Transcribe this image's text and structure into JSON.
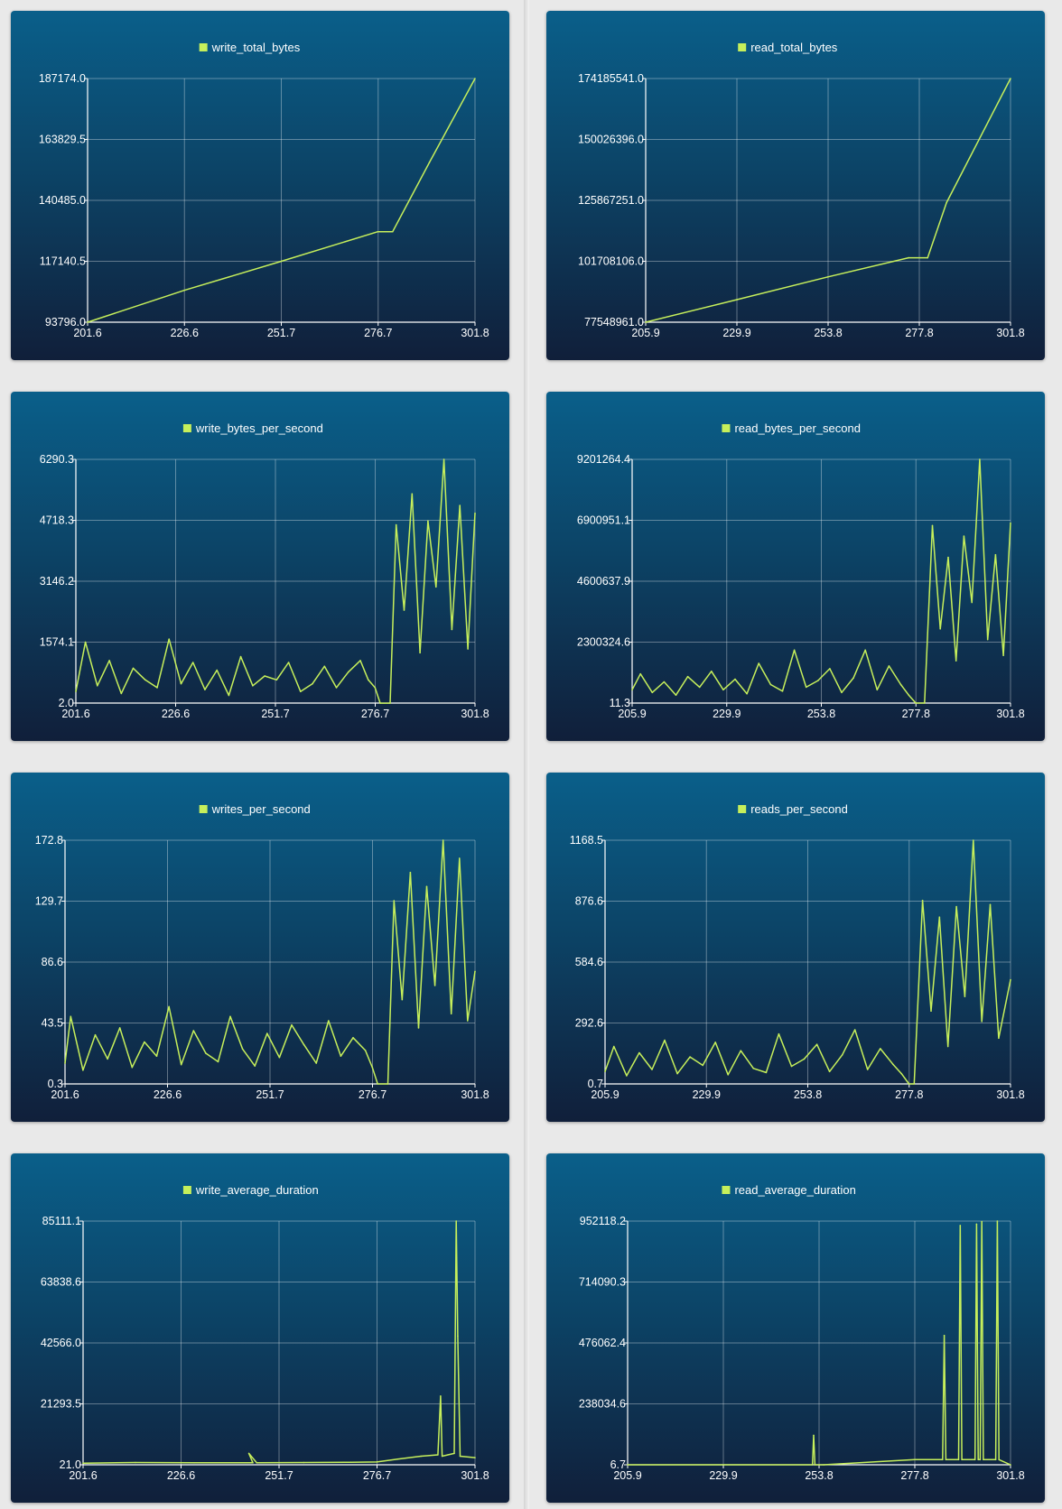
{
  "theme": {
    "line_color": "#c6ef5b",
    "card_top": "#0a5f8a",
    "card_bottom": "#101f3a",
    "page_bg": "#e9e9e9"
  },
  "chart_data": [
    {
      "id": "write_total_bytes",
      "type": "line",
      "legend": "write_total_bytes",
      "xlim": [
        201.6,
        301.8
      ],
      "ylim": [
        93796.0,
        187174.0
      ],
      "x_ticks": [
        "201.6",
        "226.6",
        "251.7",
        "276.7",
        "301.8"
      ],
      "y_ticks": [
        "93796.0",
        "117140.5",
        "140485.0",
        "163829.5",
        "187174.0"
      ],
      "grid": true,
      "legend_position": "top-center",
      "x": [
        201.6,
        226.6,
        251.7,
        276.7,
        280.5,
        290.0,
        301.8
      ],
      "y": [
        93796.0,
        106000.0,
        117140.5,
        128500.0,
        128500.0,
        155000.0,
        187174.0
      ]
    },
    {
      "id": "read_total_bytes",
      "type": "line",
      "legend": "read_total_bytes",
      "xlim": [
        205.9,
        301.8
      ],
      "ylim": [
        77548961.0,
        174185541.0
      ],
      "x_ticks": [
        "205.9",
        "229.9",
        "253.8",
        "277.8",
        "301.8"
      ],
      "y_ticks": [
        "77548961.0",
        "101708106.0",
        "125867251.0",
        "150026396.0",
        "174185541.0"
      ],
      "grid": true,
      "legend_position": "top-center",
      "x": [
        205.9,
        229.9,
        253.8,
        275.0,
        280.0,
        285.0,
        301.8
      ],
      "y": [
        77548961.0,
        86500000.0,
        95500000.0,
        103100000.0,
        103100000.0,
        125000000.0,
        174185541.0
      ]
    },
    {
      "id": "write_bytes_per_second",
      "type": "line",
      "legend": "write_bytes_per_second",
      "xlim": [
        201.6,
        301.8
      ],
      "ylim": [
        2.0,
        6290.3
      ],
      "x_ticks": [
        "201.6",
        "226.6",
        "251.7",
        "276.7",
        "301.8"
      ],
      "y_ticks": [
        "2.0",
        "1574.1",
        "3146.2",
        "4718.3",
        "6290.3"
      ],
      "grid": true,
      "legend_position": "top-center",
      "x": [
        201.6,
        204,
        207,
        210,
        213,
        216,
        219,
        222,
        225,
        228,
        231,
        234,
        237,
        240,
        243,
        246,
        249,
        252,
        255,
        258,
        261,
        264,
        267,
        270,
        273,
        275,
        276.7,
        278,
        280.5,
        282,
        284,
        286,
        288,
        290,
        292,
        294,
        296,
        298,
        300,
        301.8
      ],
      "y": [
        300,
        1574,
        450,
        1100,
        250,
        900,
        600,
        400,
        1650,
        500,
        1050,
        350,
        850,
        200,
        1200,
        450,
        700,
        600,
        1050,
        300,
        500,
        950,
        400,
        800,
        1100,
        600,
        400,
        0,
        0,
        4600,
        2400,
        5400,
        1300,
        4700,
        3000,
        6290,
        1900,
        5100,
        1400,
        4900
      ]
    },
    {
      "id": "read_bytes_per_second",
      "type": "line",
      "legend": "read_bytes_per_second",
      "xlim": [
        205.9,
        301.8
      ],
      "ylim": [
        11.3,
        9201264.4
      ],
      "x_ticks": [
        "205.9",
        "229.9",
        "253.8",
        "277.8",
        "301.8"
      ],
      "y_ticks": [
        "11.3",
        "2300324.6",
        "4600637.9",
        "6900951.1",
        "9201264.4"
      ],
      "grid": true,
      "legend_position": "top-center",
      "x": [
        205.9,
        208,
        211,
        214,
        217,
        220,
        223,
        226,
        229,
        232,
        235,
        238,
        241,
        244,
        247,
        250,
        253,
        256,
        259,
        262,
        265,
        268,
        271,
        274,
        276,
        277.8,
        280,
        282,
        284,
        286,
        288,
        290,
        292,
        294,
        296,
        298,
        300,
        301.8
      ],
      "y": [
        500000,
        1100000,
        400000,
        800000,
        300000,
        1000000,
        600000,
        1200000,
        500000,
        900000,
        350000,
        1500000,
        700000,
        450000,
        2000000,
        600000,
        850000,
        1300000,
        400000,
        950000,
        2000000,
        500000,
        1400000,
        700000,
        300000,
        0,
        0,
        6700000,
        2800000,
        5500000,
        1600000,
        6300000,
        3800000,
        9201264,
        2400000,
        5600000,
        1800000,
        6800000
      ]
    },
    {
      "id": "writes_per_second",
      "type": "line",
      "legend": "writes_per_second",
      "xlim": [
        201.6,
        301.8
      ],
      "ylim": [
        0.3,
        172.8
      ],
      "x_ticks": [
        "201.6",
        "226.6",
        "251.7",
        "276.7",
        "301.8"
      ],
      "y_ticks": [
        "0.3",
        "43.5",
        "86.6",
        "129.7",
        "172.8"
      ],
      "grid": true,
      "legend_position": "top-center",
      "x": [
        201.6,
        203,
        206,
        209,
        212,
        215,
        218,
        221,
        224,
        227,
        230,
        233,
        236,
        239,
        242,
        245,
        248,
        251,
        254,
        257,
        260,
        263,
        266,
        269,
        272,
        275,
        276.7,
        278,
        280.5,
        282,
        284,
        286,
        288,
        290,
        292,
        294,
        296,
        298,
        300,
        301.8
      ],
      "y": [
        15,
        48,
        10,
        35,
        18,
        40,
        12,
        30,
        20,
        55,
        14,
        38,
        22,
        16,
        48,
        25,
        13,
        36,
        19,
        42,
        28,
        15,
        45,
        20,
        33,
        24,
        12,
        0.3,
        0.3,
        130,
        60,
        150,
        40,
        140,
        70,
        172.8,
        50,
        160,
        45,
        80
      ]
    },
    {
      "id": "reads_per_second",
      "type": "line",
      "legend": "reads_per_second",
      "xlim": [
        205.9,
        301.8
      ],
      "ylim": [
        0.7,
        1168.5
      ],
      "x_ticks": [
        "205.9",
        "229.9",
        "253.8",
        "277.8",
        "301.8"
      ],
      "y_ticks": [
        "0.7",
        "292.6",
        "584.6",
        "876.6",
        "1168.5"
      ],
      "grid": true,
      "legend_position": "top-center",
      "x": [
        205.9,
        208,
        211,
        214,
        217,
        220,
        223,
        226,
        229,
        232,
        235,
        238,
        241,
        244,
        247,
        250,
        253,
        256,
        259,
        262,
        265,
        268,
        271,
        274,
        276,
        277.8,
        279,
        281,
        283,
        285,
        287,
        289,
        291,
        293,
        295,
        297,
        299,
        301.8
      ],
      "y": [
        60,
        180,
        40,
        150,
        70,
        210,
        50,
        130,
        90,
        200,
        45,
        160,
        75,
        55,
        240,
        85,
        120,
        190,
        60,
        140,
        260,
        70,
        170,
        95,
        50,
        0.7,
        0.7,
        880,
        350,
        800,
        180,
        850,
        420,
        1168,
        300,
        860,
        220,
        500
      ]
    },
    {
      "id": "write_average_duration",
      "type": "line",
      "legend": "write_average_duration",
      "xlim": [
        201.6,
        301.8
      ],
      "ylim": [
        21.0,
        85111.1
      ],
      "x_ticks": [
        "201.6",
        "226.6",
        "251.7",
        "276.7",
        "301.8"
      ],
      "y_ticks": [
        "21.0",
        "21293.5",
        "42566.0",
        "63838.6",
        "85111.1"
      ],
      "grid": true,
      "legend_position": "top-center",
      "x": [
        201.6,
        215,
        230,
        245,
        244,
        246,
        258,
        270,
        276.7,
        282,
        288,
        292.3,
        293,
        293.4,
        296.5,
        297,
        297.4,
        298,
        301.8
      ],
      "y": [
        600,
        800,
        700,
        700,
        4000,
        700,
        800,
        900,
        1000,
        2000,
        3000,
        3500,
        24000,
        3000,
        4000,
        85111,
        45000,
        3000,
        2500
      ]
    },
    {
      "id": "read_average_duration",
      "type": "line",
      "legend": "read_average_duration",
      "xlim": [
        205.9,
        301.8
      ],
      "ylim": [
        6.7,
        952118.2
      ],
      "x_ticks": [
        "205.9",
        "229.9",
        "253.8",
        "277.8",
        "301.8"
      ],
      "y_ticks": [
        "6.7",
        "238034.6",
        "476062.4",
        "714090.3",
        "952118.2"
      ],
      "grid": true,
      "legend_position": "top-center",
      "x": [
        205.9,
        252.2,
        252.5,
        252.8,
        255,
        277.8,
        284.8,
        285.2,
        285.6,
        288.8,
        289.2,
        289.6,
        292.9,
        293.3,
        293.7,
        294.2,
        294.6,
        295,
        298.1,
        298.5,
        298.9,
        301.8
      ],
      "y": [
        6.7,
        6.7,
        115000,
        6.7,
        6.7,
        20000,
        20000,
        505000,
        20000,
        20000,
        935000,
        20000,
        20000,
        940000,
        20000,
        20000,
        950000,
        20000,
        20000,
        952118,
        20000,
        6.7
      ]
    }
  ]
}
